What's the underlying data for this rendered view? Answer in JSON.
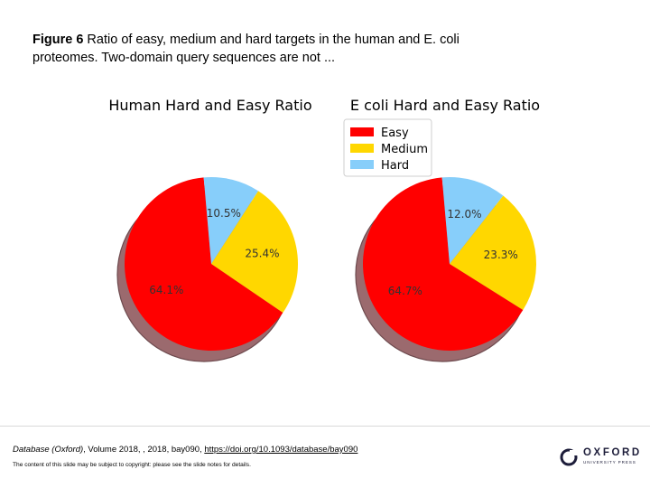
{
  "caption": {
    "label": "Figure 6",
    "text": " Ratio of easy, medium and hard targets in the human and E. coli proteomes. Two-domain query sequences are not ..."
  },
  "chart_data": [
    {
      "type": "pie",
      "title": "Human Hard and Easy Ratio",
      "categories": [
        "Easy",
        "Medium",
        "Hard"
      ],
      "values": [
        64.1,
        25.4,
        10.5
      ],
      "value_labels": [
        "64.1%",
        "25.4%",
        "10.5%"
      ],
      "colors": [
        "#ff0000",
        "#ffd700",
        "#87cefa"
      ],
      "start_angle_deg": 95,
      "direction": "counterclockwise"
    },
    {
      "type": "pie",
      "title": "E coli Hard and Easy Ratio",
      "categories": [
        "Easy",
        "Medium",
        "Hard"
      ],
      "values": [
        64.7,
        23.3,
        12.0
      ],
      "value_labels": [
        "64.7%",
        "23.3%",
        "12.0%"
      ],
      "colors": [
        "#ff0000",
        "#ffd700",
        "#87cefa"
      ],
      "start_angle_deg": 95,
      "direction": "counterclockwise",
      "legend": {
        "placement": "top-left",
        "entries": [
          "Easy",
          "Medium",
          "Hard"
        ]
      }
    }
  ],
  "footer": {
    "journal": "Database (Oxford)",
    "citation_rest": ", Volume 2018, , 2018, bay090, ",
    "doi": "https://doi.org/10.1093/database/bay090",
    "copyright": "The content of this slide may be subject to copyright: please see the slide notes for details.",
    "logo_word": "OXFORD",
    "logo_sub": "UNIVERSITY PRESS"
  }
}
